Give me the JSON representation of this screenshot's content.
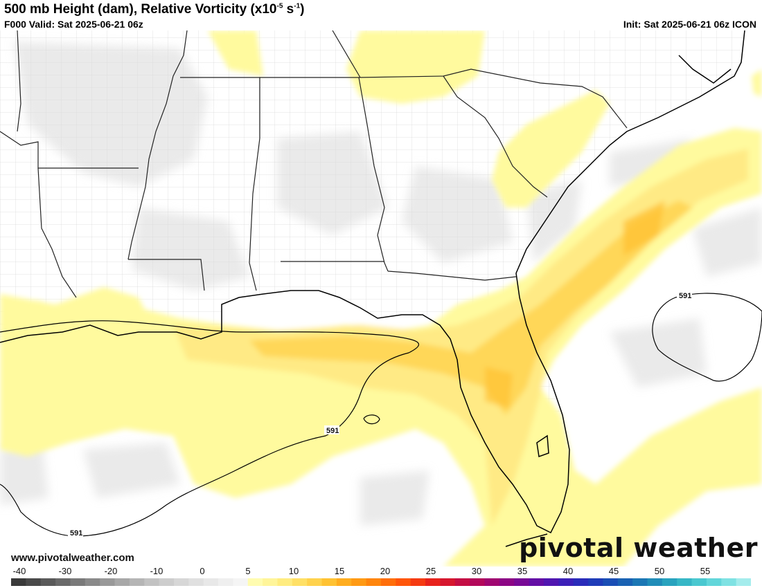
{
  "header": {
    "title_main": "500 mb Height (dam), Relative Vorticity (x10",
    "title_exp": "-5",
    "title_unit": " s",
    "title_exp2": "-1",
    "title_close": ")",
    "valid": "F000 Valid: Sat 2025-06-21 06z",
    "init": "Init: Sat 2025-06-21 06z ICON"
  },
  "map": {
    "contour_labels": [
      "591",
      "591",
      "591"
    ]
  },
  "footer": {
    "site": "www.pivotalweather.com",
    "brand": "pivotal weather"
  },
  "colorbar": {
    "ticks": [
      "-40",
      "-30",
      "-20",
      "-10",
      "0",
      "5",
      "10",
      "15",
      "20",
      "25",
      "30",
      "35",
      "40",
      "45",
      "50",
      "55"
    ],
    "colors": [
      "#3a3a3a",
      "#4a4a4a",
      "#5a5a5a",
      "#6a6a6a",
      "#7a7a7a",
      "#8a8a8a",
      "#999999",
      "#a8a8a8",
      "#b5b5b5",
      "#c2c2c2",
      "#cdcdcd",
      "#d7d7d7",
      "#e0e0e0",
      "#e8e8e8",
      "#efefef",
      "#f5f5f5",
      "#fffcb0",
      "#fff59a",
      "#ffec80",
      "#ffe066",
      "#ffd24d",
      "#ffc233",
      "#ffad1f",
      "#ff9a14",
      "#ff850d",
      "#ff6e0a",
      "#ff560a",
      "#f53b12",
      "#e8231c",
      "#d6172e",
      "#c40e44",
      "#b3085a",
      "#a00670",
      "#8c0685",
      "#780a96",
      "#640fa5",
      "#5016b0",
      "#3c20b8",
      "#2a2cba",
      "#1f3cb8",
      "#1a4eb5",
      "#1a62b3",
      "#1c77b4",
      "#218db8",
      "#29a3be",
      "#37b7c6",
      "#4ac8d0",
      "#62d6da",
      "#7fe2e3",
      "#a4ecec"
    ]
  }
}
